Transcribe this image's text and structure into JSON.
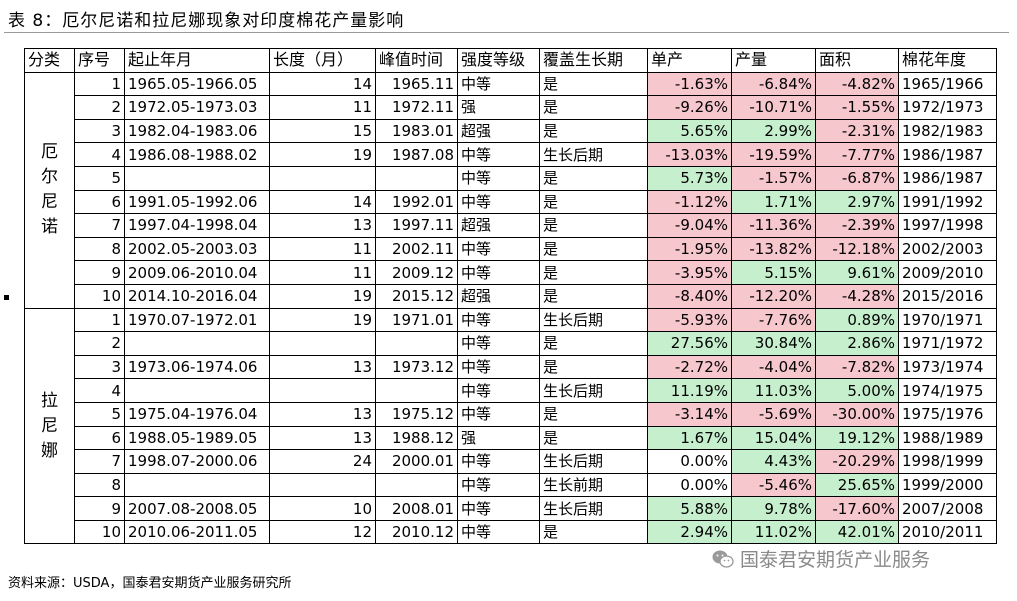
{
  "title": "表 8：厄尔尼诺和拉尼娜现象对印度棉花产量影响",
  "columns": [
    "分类",
    "序号",
    "起止年月",
    "长度（月）",
    "峰值时间",
    "强度等级",
    "覆盖生长期",
    "单产",
    "产量",
    "面积",
    "棉花年度"
  ],
  "groups": [
    {
      "name": "厄尔尼诺",
      "rows": [
        {
          "no": "1",
          "period": "1965.05-1966.05",
          "length": "14",
          "peak": "1965.11",
          "intensity": "中等",
          "stage": "是",
          "yield": "-1.63%",
          "output": "-6.84%",
          "area": "-4.82%",
          "year": "1965/1966"
        },
        {
          "no": "2",
          "period": "1972.05-1973.03",
          "length": "11",
          "peak": "1972.11",
          "intensity": "强",
          "stage": "是",
          "yield": "-9.26%",
          "output": "-10.71%",
          "area": "-1.55%",
          "year": "1972/1973"
        },
        {
          "no": "3",
          "period": "1982.04-1983.06",
          "length": "15",
          "peak": "1983.01",
          "intensity": "超强",
          "stage": "是",
          "yield": "5.65%",
          "output": "2.99%",
          "area": "-2.31%",
          "year": "1982/1983"
        },
        {
          "no": "4",
          "period": "1986.08-1988.02",
          "length": "19",
          "peak": "1987.08",
          "intensity": "中等",
          "stage": "生长后期",
          "yield": "-13.03%",
          "output": "-19.59%",
          "area": "-7.77%",
          "year": "1986/1987"
        },
        {
          "no": "5",
          "period": "",
          "length": "",
          "peak": "",
          "intensity": "中等",
          "stage": "是",
          "yield": "5.73%",
          "output": "-1.57%",
          "area": "-6.87%",
          "year": "1986/1987"
        },
        {
          "no": "6",
          "period": "1991.05-1992.06",
          "length": "14",
          "peak": "1992.01",
          "intensity": "中等",
          "stage": "是",
          "yield": "-1.12%",
          "output": "1.71%",
          "area": "2.97%",
          "year": "1991/1992"
        },
        {
          "no": "7",
          "period": "1997.04-1998.04",
          "length": "13",
          "peak": "1997.11",
          "intensity": "超强",
          "stage": "是",
          "yield": "-9.04%",
          "output": "-11.36%",
          "area": "-2.39%",
          "year": "1997/1998"
        },
        {
          "no": "8",
          "period": "2002.05-2003.03",
          "length": "11",
          "peak": "2002.11",
          "intensity": "中等",
          "stage": "是",
          "yield": "-1.95%",
          "output": "-13.82%",
          "area": "-12.18%",
          "year": "2002/2003"
        },
        {
          "no": "9",
          "period": "2009.06-2010.04",
          "length": "11",
          "peak": "2009.12",
          "intensity": "中等",
          "stage": "是",
          "yield": "-3.95%",
          "output": "5.15%",
          "area": "9.61%",
          "year": "2009/2010"
        },
        {
          "no": "10",
          "period": "2014.10-2016.04",
          "length": "19",
          "peak": "2015.12",
          "intensity": "超强",
          "stage": "是",
          "yield": "-8.40%",
          "output": "-12.20%",
          "area": "-4.28%",
          "year": "2015/2016"
        }
      ]
    },
    {
      "name": "拉尼娜",
      "rows": [
        {
          "no": "1",
          "period": "1970.07-1972.01",
          "length": "19",
          "peak": "1971.01",
          "intensity": "中等",
          "stage": "生长后期",
          "yield": "-5.93%",
          "output": "-7.76%",
          "area": "0.89%",
          "year": "1970/1971"
        },
        {
          "no": "2",
          "period": "",
          "length": "",
          "peak": "",
          "intensity": "中等",
          "stage": "是",
          "yield": "27.56%",
          "output": "30.84%",
          "area": "2.86%",
          "year": "1971/1972"
        },
        {
          "no": "3",
          "period": "1973.06-1974.06",
          "length": "13",
          "peak": "1973.12",
          "intensity": "中等",
          "stage": "是",
          "yield": "-2.72%",
          "output": "-4.04%",
          "area": "-7.82%",
          "year": "1973/1974"
        },
        {
          "no": "4",
          "period": "",
          "length": "",
          "peak": "",
          "intensity": "中等",
          "stage": "生长后期",
          "yield": "11.19%",
          "output": "11.03%",
          "area": "5.00%",
          "year": "1974/1975"
        },
        {
          "no": "5",
          "period": "1975.04-1976.04",
          "length": "13",
          "peak": "1975.12",
          "intensity": "中等",
          "stage": "是",
          "yield": "-3.14%",
          "output": "-5.69%",
          "area": "-30.00%",
          "year": "1975/1976"
        },
        {
          "no": "6",
          "period": "1988.05-1989.05",
          "length": "13",
          "peak": "1988.12",
          "intensity": "强",
          "stage": "是",
          "yield": "1.67%",
          "output": "15.04%",
          "area": "19.12%",
          "year": "1988/1989"
        },
        {
          "no": "7",
          "period": "1998.07-2000.06",
          "length": "24",
          "peak": "2000.01",
          "intensity": "中等",
          "stage": "生长后期",
          "yield": "0.00%",
          "output": "4.43%",
          "area": "-20.29%",
          "year": "1998/1999"
        },
        {
          "no": "8",
          "period": "",
          "length": "",
          "peak": "",
          "intensity": "中等",
          "stage": "生长前期",
          "yield": "0.00%",
          "output": "-5.46%",
          "area": "25.65%",
          "year": "1999/2000"
        },
        {
          "no": "9",
          "period": "2007.08-2008.05",
          "length": "10",
          "peak": "2008.01",
          "intensity": "中等",
          "stage": "生长后期",
          "yield": "5.88%",
          "output": "9.78%",
          "area": "-17.60%",
          "year": "2007/2008"
        },
        {
          "no": "10",
          "period": "2010.06-2011.05",
          "length": "12",
          "peak": "2010.12",
          "intensity": "中等",
          "stage": "是",
          "yield": "2.94%",
          "output": "11.02%",
          "area": "42.01%",
          "year": "2010/2011"
        }
      ]
    }
  ],
  "source": "资料来源：USDA，国泰君安期货产业服务研究所",
  "watermark": "国泰君安期货产业服务",
  "colors": {
    "negative_fill": "#f7c7ce",
    "positive_fill": "#c6efce",
    "border": "#000000"
  },
  "icons": {
    "watermark": "wechat-icon"
  }
}
